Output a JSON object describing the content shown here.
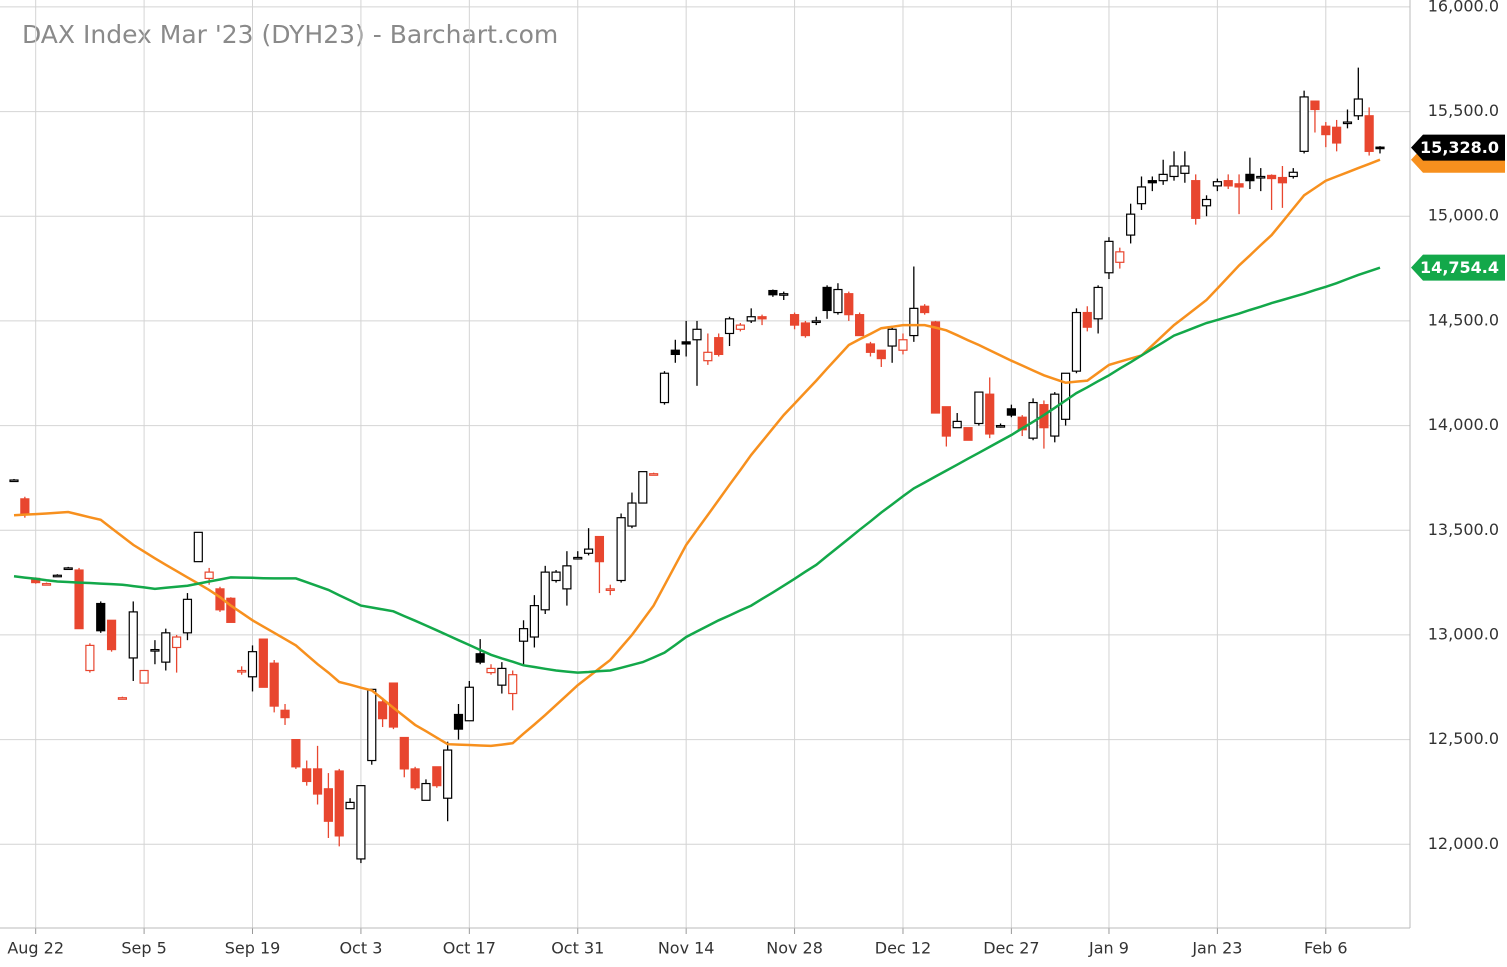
{
  "chart_data": {
    "type": "candlestick",
    "title": "DAX Index Mar '23 (DYH23) - Barchart.com",
    "up_color": "#000000",
    "down_color": "#e8462f",
    "categories": [
      null,
      null,
      "Aug 22",
      null,
      null,
      null,
      null,
      null,
      null,
      null,
      null,
      null,
      "Sep 5",
      null,
      null,
      null,
      null,
      null,
      null,
      null,
      null,
      null,
      "Sep 19",
      null,
      null,
      null,
      null,
      null,
      null,
      null,
      null,
      null,
      "Oct 3",
      null,
      null,
      null,
      null,
      null,
      null,
      null,
      null,
      null,
      "Oct 17",
      null,
      null,
      null,
      null,
      null,
      null,
      null,
      null,
      null,
      "Oct 31",
      null,
      null,
      null,
      null,
      null,
      null,
      null,
      null,
      null,
      "Nov 14",
      null,
      null,
      null,
      null,
      null,
      null,
      null,
      null,
      null,
      "Nov 28",
      null,
      null,
      null,
      null,
      null,
      null,
      null,
      null,
      null,
      "Dec 12",
      null,
      null,
      null,
      null,
      null,
      null,
      null,
      null,
      null,
      "Dec 27",
      null,
      null,
      null,
      null,
      null,
      null,
      null,
      null,
      "Jan 9",
      null,
      null,
      null,
      null,
      null,
      null,
      null,
      null,
      null,
      "Jan 23",
      null,
      null,
      null,
      null,
      null,
      null,
      null,
      null,
      null,
      "Feb 6",
      null,
      null,
      null,
      null,
      null
    ],
    "ohlc": [
      [
        13740,
        13745,
        13735,
        13740
      ],
      [
        13650,
        13660,
        13560,
        13575
      ],
      [
        13270,
        13275,
        13245,
        13250
      ],
      [
        13245,
        13250,
        13240,
        13245
      ],
      [
        13285,
        13290,
        13280,
        13285
      ],
      [
        13320,
        13325,
        13315,
        13320
      ],
      [
        13310,
        13320,
        13030,
        13030
      ],
      [
        12830,
        12960,
        12820,
        12950
      ],
      [
        13150,
        13160,
        13010,
        13020
      ],
      [
        13070,
        13070,
        12920,
        12930
      ],
      [
        12700,
        12705,
        12695,
        12700
      ],
      [
        12890,
        13160,
        12780,
        13110
      ],
      [
        12770,
        12830,
        12770,
        12830
      ],
      [
        12930,
        12975,
        12860,
        12930
      ],
      [
        12870,
        13030,
        12830,
        13010
      ],
      [
        12940,
        13000,
        12820,
        12990
      ],
      [
        13010,
        13200,
        12975,
        13170
      ],
      [
        13350,
        13490,
        13350,
        13490
      ],
      [
        13270,
        13320,
        13240,
        13300
      ],
      [
        13220,
        13230,
        13110,
        13120
      ],
      [
        13175,
        13180,
        13060,
        13060
      ],
      [
        12830,
        12850,
        12810,
        12830
      ],
      [
        12800,
        12950,
        12730,
        12920
      ],
      [
        12980,
        12980,
        12750,
        12750
      ],
      [
        12865,
        12880,
        12630,
        12660
      ],
      [
        12640,
        12670,
        12570,
        12605
      ],
      [
        12500,
        12500,
        12360,
        12370
      ],
      [
        12360,
        12400,
        12280,
        12300
      ],
      [
        12360,
        12470,
        12190,
        12240
      ],
      [
        12265,
        12340,
        12030,
        12110
      ],
      [
        12350,
        12360,
        11990,
        12040
      ],
      [
        12170,
        12220,
        12170,
        12200
      ],
      [
        11930,
        12280,
        11910,
        12280
      ],
      [
        12400,
        12740,
        12380,
        12740
      ],
      [
        12680,
        12700,
        12560,
        12600
      ],
      [
        12770,
        12770,
        12550,
        12560
      ],
      [
        12510,
        12510,
        12320,
        12360
      ],
      [
        12360,
        12370,
        12260,
        12270
      ],
      [
        12210,
        12310,
        12210,
        12290
      ],
      [
        12370,
        12370,
        12270,
        12280
      ],
      [
        12220,
        12490,
        12110,
        12450
      ],
      [
        12620,
        12670,
        12500,
        12550
      ],
      [
        12590,
        12780,
        12590,
        12750
      ],
      [
        12910,
        12980,
        12860,
        12870
      ],
      [
        12820,
        12860,
        12810,
        12840
      ],
      [
        12760,
        12870,
        12720,
        12840
      ],
      [
        12720,
        12830,
        12640,
        12810
      ],
      [
        12970,
        13070,
        12850,
        13030
      ],
      [
        12990,
        13190,
        12940,
        13140
      ],
      [
        13120,
        13330,
        13100,
        13300
      ],
      [
        13260,
        13310,
        13250,
        13300
      ],
      [
        13220,
        13400,
        13140,
        13330
      ],
      [
        13370,
        13400,
        13360,
        13370
      ],
      [
        13390,
        13510,
        13380,
        13410
      ],
      [
        13470,
        13470,
        13200,
        13350
      ],
      [
        13220,
        13240,
        13190,
        13220
      ],
      [
        13260,
        13580,
        13250,
        13560
      ],
      [
        13520,
        13680,
        13510,
        13630
      ],
      [
        13630,
        13780,
        13630,
        13780
      ],
      [
        13770,
        13775,
        13765,
        13770
      ],
      [
        14110,
        14260,
        14100,
        14250
      ],
      [
        14360,
        14410,
        14300,
        14340
      ],
      [
        14400,
        14500,
        14330,
        14390
      ],
      [
        14410,
        14500,
        14190,
        14460
      ],
      [
        14310,
        14440,
        14290,
        14350
      ],
      [
        14420,
        14440,
        14330,
        14340
      ],
      [
        14440,
        14520,
        14380,
        14510
      ],
      [
        14460,
        14490,
        14450,
        14480
      ],
      [
        14500,
        14560,
        14490,
        14520
      ],
      [
        14520,
        14530,
        14480,
        14510
      ],
      [
        14645,
        14650,
        14615,
        14625
      ],
      [
        14630,
        14640,
        14600,
        14630
      ],
      [
        14530,
        14540,
        14460,
        14480
      ],
      [
        14490,
        14500,
        14420,
        14430
      ],
      [
        14500,
        14520,
        14480,
        14500
      ],
      [
        14660,
        14670,
        14510,
        14550
      ],
      [
        14540,
        14680,
        14530,
        14650
      ],
      [
        14630,
        14640,
        14500,
        14530
      ],
      [
        14530,
        14540,
        14430,
        14430
      ],
      [
        14390,
        14400,
        14330,
        14350
      ],
      [
        14360,
        14360,
        14280,
        14320
      ],
      [
        14380,
        14470,
        14300,
        14460
      ],
      [
        14360,
        14440,
        14340,
        14410
      ],
      [
        14430,
        14760,
        14400,
        14560
      ],
      [
        14570,
        14580,
        14530,
        14540
      ],
      [
        14495,
        14500,
        14060,
        14060
      ],
      [
        14090,
        14090,
        13900,
        13950
      ],
      [
        13990,
        14060,
        13990,
        14020
      ],
      [
        13990,
        13990,
        13930,
        13930
      ],
      [
        14010,
        14160,
        14000,
        14160
      ],
      [
        14150,
        14230,
        13940,
        13960
      ],
      [
        14000,
        14010,
        13990,
        14000
      ],
      [
        14080,
        14100,
        14040,
        14050
      ],
      [
        14040,
        14050,
        13950,
        13980
      ],
      [
        13940,
        14130,
        13930,
        14110
      ],
      [
        14100,
        14120,
        13890,
        13990
      ],
      [
        13950,
        14160,
        13920,
        14150
      ],
      [
        14030,
        14250,
        14000,
        14250
      ],
      [
        14260,
        14560,
        14250,
        14540
      ],
      [
        14540,
        14570,
        14450,
        14470
      ],
      [
        14510,
        14670,
        14440,
        14660
      ],
      [
        14730,
        14900,
        14700,
        14880
      ],
      [
        14780,
        14850,
        14750,
        14830
      ],
      [
        14910,
        15060,
        14870,
        15010
      ],
      [
        15060,
        15190,
        15030,
        15140
      ],
      [
        15170,
        15190,
        15120,
        15160
      ],
      [
        15170,
        15270,
        15150,
        15200
      ],
      [
        15190,
        15310,
        15170,
        15240
      ],
      [
        15205,
        15310,
        15160,
        15240
      ],
      [
        15170,
        15200,
        14960,
        14990
      ],
      [
        15050,
        15100,
        15000,
        15080
      ],
      [
        15145,
        15180,
        15120,
        15165
      ],
      [
        15170,
        15200,
        15130,
        15145
      ],
      [
        15155,
        15200,
        15010,
        15140
      ],
      [
        15200,
        15280,
        15130,
        15170
      ],
      [
        15190,
        15230,
        15120,
        15190
      ],
      [
        15195,
        15200,
        15030,
        15180
      ],
      [
        15185,
        15240,
        15040,
        15160
      ],
      [
        15190,
        15230,
        15180,
        15210
      ],
      [
        15310,
        15600,
        15300,
        15570
      ],
      [
        15550,
        15550,
        15400,
        15510
      ],
      [
        15430,
        15450,
        15330,
        15390
      ],
      [
        15425,
        15460,
        15310,
        15350
      ],
      [
        15450,
        15510,
        15420,
        15450
      ],
      [
        15480,
        15710,
        15460,
        15560
      ],
      [
        15480,
        15520,
        15290,
        15310
      ],
      [
        15330,
        15335,
        15300,
        15328
      ]
    ],
    "last_price_label": "15,328.0",
    "series": [
      {
        "color": "#f7901e",
        "values": [
          13572,
          13575,
          13577,
          13580,
          13584,
          13587,
          13575,
          13562,
          13550,
          13510,
          13470,
          13430,
          13398,
          13366,
          13335,
          13305,
          13275,
          13245,
          13215,
          13180,
          13140,
          13105,
          13070,
          13040,
          13010,
          12980,
          12950,
          12905,
          12860,
          12820,
          12775,
          12762,
          12748,
          12735,
          12694,
          12652,
          12611,
          12570,
          12540,
          12509,
          12478,
          12476,
          12474,
          12472,
          12470,
          12476,
          12483,
          12528,
          12572,
          12617,
          12665,
          12712,
          12760,
          12800,
          12840,
          12880,
          12940,
          13000,
          13070,
          13140,
          13237,
          13333,
          13430,
          13502,
          13573,
          13645,
          13717,
          13788,
          13860,
          13923,
          13987,
          14050,
          14105,
          14160,
          14215,
          14272,
          14328,
          14385,
          14412,
          14438,
          14465,
          14472,
          14480,
          14480,
          14480,
          14468,
          14455,
          14432,
          14408,
          14385,
          14360,
          14335,
          14310,
          14287,
          14263,
          14240,
          14222,
          14205,
          14210,
          14215,
          14252,
          14290,
          14305,
          14320,
          14335,
          14383,
          14432,
          14480,
          14520,
          14560,
          14600,
          14655,
          14710,
          14765,
          14813,
          14862,
          14910,
          14973,
          15037,
          15100,
          15135,
          15170,
          15190,
          15210,
          15230,
          15250,
          15270
        ]
      },
      {
        "color": "#13a84a",
        "last_label": "14,754.4",
        "values": [
          13280,
          13274,
          13268,
          13261,
          13255,
          13253,
          13250,
          13248,
          13245,
          13243,
          13240,
          13233,
          13227,
          13220,
          13225,
          13230,
          13235,
          13245,
          13255,
          13265,
          13275,
          13274,
          13273,
          13271,
          13270,
          13270,
          13270,
          13252,
          13233,
          13215,
          13190,
          13165,
          13140,
          13131,
          13122,
          13113,
          13090,
          13068,
          13045,
          13022,
          12998,
          12975,
          12952,
          12928,
          12905,
          12888,
          12872,
          12855,
          12847,
          12838,
          12830,
          12825,
          12820,
          12823,
          12827,
          12830,
          12843,
          12857,
          12870,
          12892,
          12915,
          12952,
          12990,
          13017,
          13043,
          13070,
          13093,
          13117,
          13140,
          13172,
          13203,
          13235,
          13268,
          13302,
          13335,
          13377,
          13418,
          13460,
          13502,
          13543,
          13585,
          13623,
          13662,
          13700,
          13728,
          13757,
          13785,
          13813,
          13842,
          13870,
          13898,
          13927,
          13955,
          13987,
          14018,
          14050,
          14085,
          14120,
          14155,
          14183,
          14212,
          14240,
          14272,
          14303,
          14335,
          14367,
          14398,
          14430,
          14450,
          14470,
          14490,
          14505,
          14520,
          14535,
          14552,
          14568,
          14585,
          14600,
          14615,
          14630,
          14647,
          14663,
          14680,
          14700,
          14720,
          14737,
          14754.4
        ]
      }
    ],
    "ylim": [
      11600,
      16033
    ],
    "yticks": [
      {
        "value": 12000,
        "label": "12,000.0"
      },
      {
        "value": 12500,
        "label": "12,500.0"
      },
      {
        "value": 13000,
        "label": "13,000.0"
      },
      {
        "value": 13500,
        "label": "13,500.0"
      },
      {
        "value": 14000,
        "label": "14,000.0"
      },
      {
        "value": 14500,
        "label": "14,500.0"
      },
      {
        "value": 15000,
        "label": "15,000.0"
      },
      {
        "value": 15500,
        "label": "15,500.0"
      },
      {
        "value": 16000,
        "label": "16,000.0"
      }
    ],
    "grid": true
  }
}
